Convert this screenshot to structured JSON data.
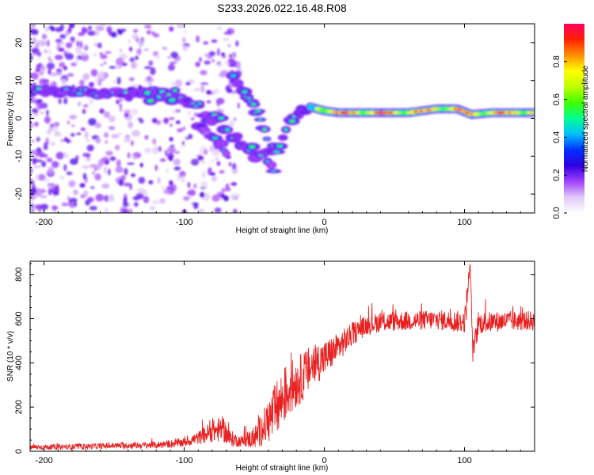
{
  "title": "S233.2026.022.16.48.R08",
  "chart_data": [
    {
      "type": "heatmap",
      "name": "spectrogram",
      "title": "S233.2026.022.16.48.R08",
      "xlabel": "Height of straight line (km)",
      "ylabel": "Frequency (Hz)",
      "xlim": [
        -210,
        150
      ],
      "ylim": [
        -25,
        25
      ],
      "x_ticks": [
        -200,
        -100,
        0,
        100
      ],
      "x_tick_labels": [
        "-200",
        "-100",
        "0",
        "100"
      ],
      "y_ticks": [
        -20,
        -10,
        0,
        10,
        20
      ],
      "y_tick_labels": [
        "-20",
        "-10",
        "0",
        "10",
        "20"
      ],
      "ridge": {
        "main_branch": [
          [
            -210,
            7.5
          ],
          [
            -180,
            7.2
          ],
          [
            -150,
            6.5
          ],
          [
            -120,
            6.2
          ],
          [
            -105,
            6.5
          ],
          [
            -95,
            3.5
          ],
          [
            -85,
            1.5
          ],
          [
            -75,
            -1
          ],
          [
            -65,
            -5
          ],
          [
            -55,
            -8
          ],
          [
            -45,
            -10
          ],
          [
            -38,
            -9
          ],
          [
            -33,
            -7
          ],
          [
            -28,
            -3
          ],
          [
            -20,
            1
          ],
          [
            -10,
            3
          ],
          [
            0,
            2
          ],
          [
            10,
            1.5
          ],
          [
            30,
            1.5
          ],
          [
            60,
            1.5
          ],
          [
            80,
            2.5
          ],
          [
            95,
            2.5
          ],
          [
            105,
            1
          ],
          [
            120,
            1.5
          ],
          [
            150,
            1.5
          ]
        ],
        "upper_branch": [
          [
            -65,
            10
          ],
          [
            -55,
            6
          ],
          [
            -48,
            2
          ],
          [
            -42,
            -4
          ],
          [
            -38,
            -12
          ],
          [
            -35,
            -15
          ]
        ],
        "lower_branch": [
          [
            -90,
            -2
          ],
          [
            -80,
            -5
          ],
          [
            -70,
            -9
          ]
        ]
      },
      "colorbar": {
        "label": "Normalized spectral amplitude",
        "range": [
          0,
          1
        ],
        "ticks": [
          0.0,
          0.2,
          0.4,
          0.6,
          0.8
        ],
        "tick_labels": [
          "0.0",
          "0.2",
          "0.4",
          "0.6",
          "0.8"
        ],
        "colors": [
          "#ffffff",
          "#e0c8f8",
          "#a040ff",
          "#3000e0",
          "#0030ff",
          "#00c0ff",
          "#00ff90",
          "#40ff00",
          "#c0ff00",
          "#ffff00",
          "#ff9000",
          "#ff2000",
          "#ff0060"
        ]
      }
    },
    {
      "type": "line",
      "name": "snr",
      "xlabel": "Height of straight line (km)",
      "ylabel": "SNR (10 * v/v)",
      "xlim": [
        -210,
        150
      ],
      "ylim": [
        0,
        860
      ],
      "x_ticks": [
        -200,
        -100,
        0,
        100
      ],
      "x_tick_labels": [
        "-200",
        "-100",
        "0",
        "100"
      ],
      "y_ticks": [
        0,
        200,
        400,
        600,
        800
      ],
      "y_tick_labels": [
        "0",
        "200",
        "400",
        "600",
        "800"
      ],
      "color": "#e82020",
      "envelope": {
        "x": [
          -210,
          -180,
          -150,
          -120,
          -100,
          -90,
          -80,
          -72,
          -68,
          -60,
          -50,
          -42,
          -35,
          -28,
          -22,
          -15,
          -8,
          0,
          8,
          15,
          22,
          30,
          40,
          60,
          80,
          100,
          102,
          104,
          106,
          110,
          130,
          150
        ],
        "mean": [
          18,
          20,
          25,
          28,
          40,
          60,
          90,
          100,
          60,
          45,
          60,
          120,
          180,
          260,
          300,
          340,
          390,
          420,
          460,
          500,
          540,
          570,
          585,
          590,
          595,
          585,
          700,
          850,
          440,
          580,
          590,
          590
        ],
        "noise": [
          12,
          12,
          14,
          16,
          20,
          30,
          50,
          60,
          40,
          25,
          50,
          90,
          130,
          130,
          120,
          110,
          100,
          80,
          70,
          60,
          50,
          45,
          45,
          45,
          45,
          50,
          80,
          0,
          60,
          50,
          45,
          45
        ]
      }
    }
  ]
}
